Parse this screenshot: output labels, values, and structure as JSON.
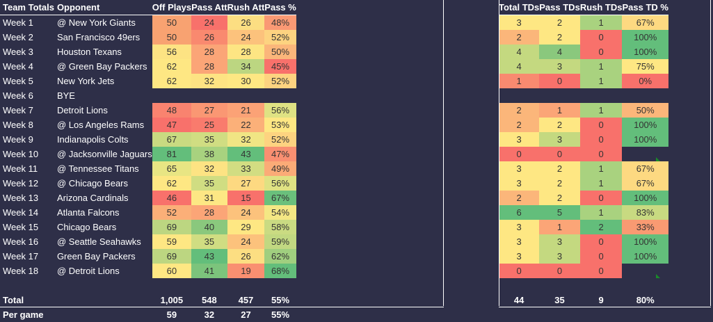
{
  "left": {
    "headers": [
      "Team Totals",
      "Opponent",
      "Off Plays",
      "Pass Att",
      "Rush Att",
      "Pass %"
    ],
    "rows": [
      {
        "week": "Week 1",
        "opp": "@ New York Giants",
        "plays": "50",
        "pa": "24",
        "ra": "26",
        "pct": "48%",
        "c": [
          "#f8a271",
          "#f8716b",
          "#fcde82",
          "#fa9974"
        ]
      },
      {
        "week": "Week 2",
        "opp": "San Francisco 49ers",
        "plays": "50",
        "pa": "26",
        "ra": "24",
        "pct": "52%",
        "c": [
          "#f8a271",
          "#f9896f",
          "#fcc27c",
          "#fdd380"
        ]
      },
      {
        "week": "Week 3",
        "opp": "Houston Texans",
        "plays": "56",
        "pa": "28",
        "ra": "28",
        "pct": "50%",
        "c": [
          "#fde383",
          "#fba577",
          "#fde583",
          "#fbb67a"
        ]
      },
      {
        "week": "Week 4",
        "opp": "@ Green Bay Packers",
        "plays": "62",
        "pa": "28",
        "ra": "34",
        "pct": "45%",
        "c": [
          "#fee783",
          "#fba577",
          "#bcd681",
          "#f8716b"
        ]
      },
      {
        "week": "Week 5",
        "opp": "New York Jets",
        "plays": "62",
        "pa": "32",
        "ra": "30",
        "pct": "52%",
        "c": [
          "#fee783",
          "#fde383",
          "#fee783",
          "#fdd380"
        ]
      },
      {
        "week": "Week 6",
        "opp": "BYE",
        "bye": true
      },
      {
        "week": "Week 7",
        "opp": "Detroit Lions",
        "plays": "48",
        "pa": "27",
        "ra": "21",
        "pct": "56%",
        "c": [
          "#f9836f",
          "#fa9773",
          "#fba276",
          "#dfe283"
        ]
      },
      {
        "week": "Week 8",
        "opp": "@ Los Angeles Rams",
        "plays": "47",
        "pa": "25",
        "ra": "22",
        "pct": "53%",
        "c": [
          "#f8716b",
          "#f97b6d",
          "#fbb079",
          "#fee783"
        ]
      },
      {
        "week": "Week 9",
        "opp": "Indianapolis Colts",
        "plays": "67",
        "pa": "35",
        "ra": "32",
        "pct": "52%",
        "c": [
          "#c9da81",
          "#d0dd82",
          "#f0e584",
          "#fdd380"
        ]
      },
      {
        "week": "Week 10",
        "opp": "@ Jacksonville Jaguars",
        "plays": "81",
        "pa": "38",
        "ra": "43",
        "pct": "47%",
        "c": [
          "#63be7b",
          "#a8d27f",
          "#63be7b",
          "#f98f71"
        ]
      },
      {
        "week": "Week 11",
        "opp": "@ Tennessee Titans",
        "plays": "65",
        "pa": "32",
        "ra": "33",
        "pct": "49%",
        "c": [
          "#e8e583",
          "#fde383",
          "#d2dd82",
          "#fbab77"
        ]
      },
      {
        "week": "Week 12",
        "opp": "@ Chicago Bears",
        "plays": "62",
        "pa": "35",
        "ra": "27",
        "pct": "56%",
        "c": [
          "#fee783",
          "#d0dd82",
          "#fdd981",
          "#dfe283"
        ]
      },
      {
        "week": "Week 13",
        "opp": "Arizona Cardinals",
        "plays": "46",
        "pa": "31",
        "ra": "15",
        "pct": "67%",
        "c": [
          "#f8716b",
          "#fde784",
          "#f8716b",
          "#6ac07c"
        ]
      },
      {
        "week": "Week 14",
        "opp": "Atlanta Falcons",
        "plays": "52",
        "pa": "28",
        "ra": "24",
        "pct": "54%",
        "c": [
          "#fbaf78",
          "#fba577",
          "#fcc27c",
          "#f4e784"
        ]
      },
      {
        "week": "Week 15",
        "opp": "Chicago Bears",
        "plays": "69",
        "pa": "40",
        "ra": "29",
        "pct": "58%",
        "c": [
          "#bcd681",
          "#8ac87d",
          "#fee783",
          "#cadb82"
        ]
      },
      {
        "week": "Week 16",
        "opp": "@ Seattle Seahawks",
        "plays": "59",
        "pa": "35",
        "ra": "24",
        "pct": "59%",
        "c": [
          "#fee783",
          "#d0dd82",
          "#fcc27c",
          "#c1d881"
        ]
      },
      {
        "week": "Week 17",
        "opp": "Green Bay Packers",
        "plays": "69",
        "pa": "43",
        "ra": "26",
        "pct": "62%",
        "c": [
          "#bcd681",
          "#63be7b",
          "#fcde82",
          "#a0cf7f"
        ]
      },
      {
        "week": "Week 18",
        "opp": "@ Detroit Lions",
        "plays": "60",
        "pa": "41",
        "ra": "19",
        "pct": "68%",
        "c": [
          "#fee783",
          "#7cc47c",
          "#f98f71",
          "#63be7b"
        ]
      }
    ],
    "total": {
      "label": "Total",
      "plays": "1,005",
      "pa": "548",
      "ra": "457",
      "pct": "55%"
    },
    "pergame": {
      "label": "Per game",
      "plays": "59",
      "pa": "32",
      "ra": "27",
      "pct": "55%"
    }
  },
  "right": {
    "headers": [
      "Total TDs",
      "Pass TDs",
      "Rush TDs",
      "Pass TD %"
    ],
    "rows": [
      {
        "t": "3",
        "p": "2",
        "r": "1",
        "pct": "67%",
        "c": [
          "#fee783",
          "#fee783",
          "#a9d27f",
          "#fdd981"
        ]
      },
      {
        "t": "2",
        "p": "2",
        "r": "0",
        "pct": "100%",
        "c": [
          "#fbb67a",
          "#fee783",
          "#f8716b",
          "#63be7b"
        ]
      },
      {
        "t": "4",
        "p": "4",
        "r": "0",
        "pct": "100%",
        "c": [
          "#c4d980",
          "#8ac87d",
          "#f8716b",
          "#63be7b"
        ]
      },
      {
        "t": "4",
        "p": "3",
        "r": "1",
        "pct": "75%",
        "c": [
          "#c4d980",
          "#c4d980",
          "#a9d27f",
          "#fee783"
        ]
      },
      {
        "t": "1",
        "p": "0",
        "r": "1",
        "pct": "0%",
        "c": [
          "#f98a70",
          "#f8716b",
          "#a9d27f",
          "#f8716b"
        ]
      },
      {
        "bye": true
      },
      {
        "t": "2",
        "p": "1",
        "r": "1",
        "pct": "50%",
        "c": [
          "#fbb67a",
          "#fba577",
          "#a9d27f",
          "#fbb67a"
        ]
      },
      {
        "t": "2",
        "p": "2",
        "r": "0",
        "pct": "100%",
        "c": [
          "#fbb67a",
          "#fee783",
          "#f8716b",
          "#63be7b"
        ]
      },
      {
        "t": "3",
        "p": "3",
        "r": "0",
        "pct": "100%",
        "c": [
          "#fee783",
          "#c4d980",
          "#f8716b",
          "#63be7b"
        ]
      },
      {
        "t": "0",
        "p": "0",
        "r": "0",
        "pct": "",
        "c": [
          "#f8716b",
          "#f8716b",
          "#f8716b",
          ""
        ]
      },
      {
        "t": "3",
        "p": "2",
        "r": "1",
        "pct": "67%",
        "c": [
          "#fee783",
          "#fee783",
          "#a9d27f",
          "#fdd981"
        ]
      },
      {
        "t": "3",
        "p": "2",
        "r": "1",
        "pct": "67%",
        "c": [
          "#fee783",
          "#fee783",
          "#a9d27f",
          "#fdd981"
        ]
      },
      {
        "t": "2",
        "p": "2",
        "r": "0",
        "pct": "100%",
        "c": [
          "#fbb67a",
          "#fee783",
          "#f8716b",
          "#63be7b"
        ]
      },
      {
        "t": "6",
        "p": "5",
        "r": "1",
        "pct": "83%",
        "c": [
          "#63be7b",
          "#63be7b",
          "#a9d27f",
          "#c8da81"
        ]
      },
      {
        "t": "3",
        "p": "1",
        "r": "2",
        "pct": "33%",
        "c": [
          "#fee783",
          "#fba577",
          "#63be7b",
          "#f99a72"
        ]
      },
      {
        "t": "3",
        "p": "3",
        "r": "0",
        "pct": "100%",
        "c": [
          "#fee783",
          "#c4d980",
          "#f8716b",
          "#63be7b"
        ]
      },
      {
        "t": "3",
        "p": "3",
        "r": "0",
        "pct": "100%",
        "c": [
          "#fee783",
          "#c4d980",
          "#f8716b",
          "#63be7b"
        ]
      },
      {
        "t": "0",
        "p": "0",
        "r": "0",
        "pct": "",
        "c": [
          "#f8716b",
          "#f8716b",
          "#f8716b",
          ""
        ]
      }
    ],
    "total": {
      "t": "44",
      "p": "35",
      "r": "9",
      "pct": "80%"
    }
  }
}
